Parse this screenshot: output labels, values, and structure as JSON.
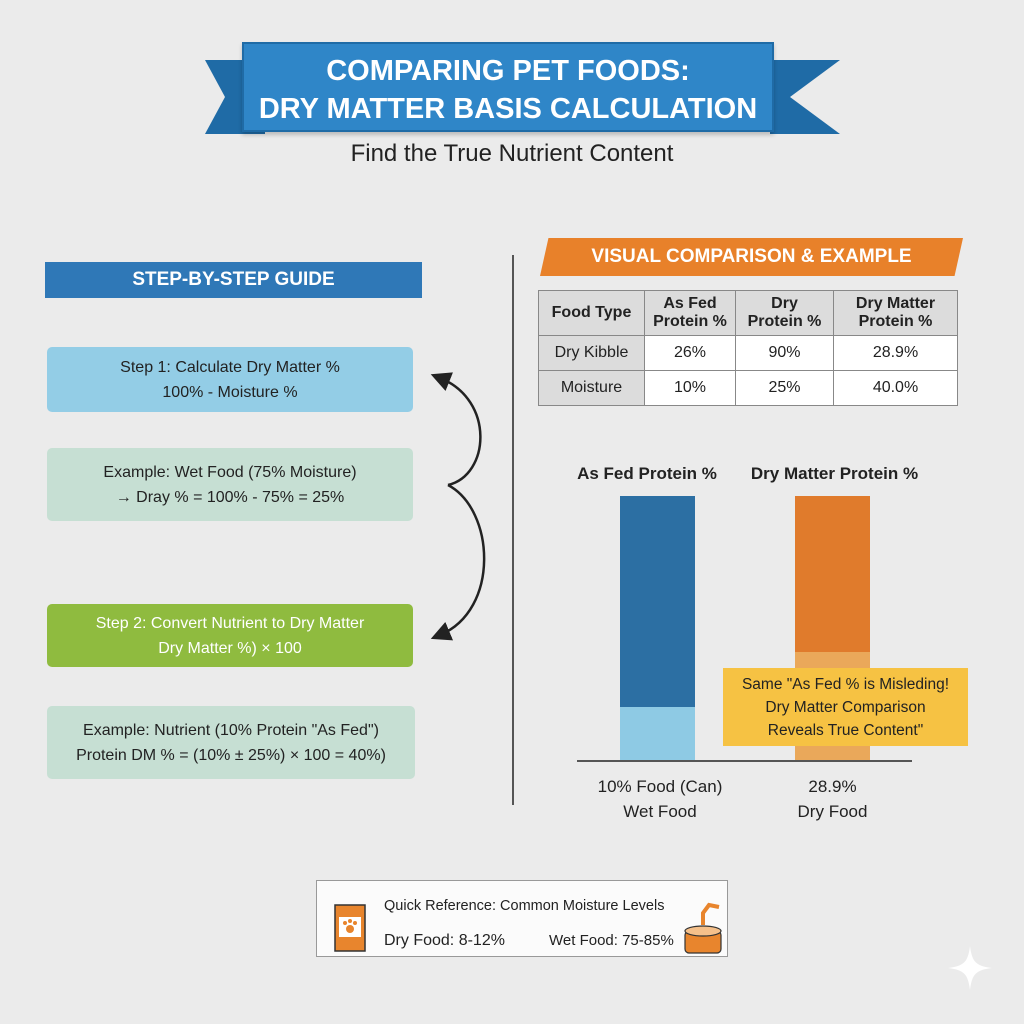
{
  "header": {
    "title_line1": "COMPARING PET FOODS:",
    "title_line2": "DRY MATTER BASIS CALCULATION",
    "subtitle": "Find the True Nutrient Content"
  },
  "guide": {
    "heading": "STEP-BY-STEP GUIDE",
    "steps": [
      {
        "line1": "Step 1: Calculate Dry Matter %",
        "line2": "100% - Moisture %",
        "color": "#93cde6"
      },
      {
        "line1": "Example: Wet Food (75% Moisture)",
        "line2": "→ Dray % = 100% - 75% = 25%",
        "color": "#c6dfd3"
      },
      {
        "line1": "Step 2: Convert Nutrient to Dry Matter",
        "line2": "Dry Matter %) × 100",
        "color": "#8fbb3f"
      },
      {
        "line1": "Example: Nutrient  (10% Protein \"As Fed\")",
        "line2": "Protein DM % = (10% ± 25%) × 100 = 40%)",
        "color": "#c6dfd3"
      }
    ]
  },
  "comparison": {
    "heading": "VISUAL COMPARISON & EXAMPLE",
    "table": {
      "headers": [
        [
          "Food Type",
          ""
        ],
        [
          "As Fed",
          "Protein %"
        ],
        [
          "Dry",
          "Protein %"
        ],
        [
          "Dry Matter",
          "Protein %"
        ]
      ],
      "rows": [
        [
          "Dry Kibble",
          "26%",
          "90%",
          "28.9%"
        ],
        [
          "Moisture",
          "10%",
          "25%",
          "40.0%"
        ]
      ]
    }
  },
  "chart_data": {
    "type": "bar",
    "categories": [
      "As Fed Protein %",
      "Dry Matter Protein %"
    ],
    "bar_labels": [
      [
        "10% Food (Can)",
        "Wet Food"
      ],
      [
        "28.9%",
        "Dry Food"
      ]
    ],
    "lower_segment_fraction": [
      0.2,
      0.41
    ],
    "colors": {
      "blue": "#2c6fa3",
      "light_blue": "#8ecae4",
      "orange": "#e07b2c",
      "light_orange": "#eaa85a"
    },
    "callout": [
      "Same \"As Fed % is Misleding!",
      "Dry Matter Comparison",
      "Reveals True Content\""
    ]
  },
  "reference": {
    "title": "Quick Reference: Common Moisture Levels",
    "dry": "Dry Food: 8-12%",
    "wet": "Wet Food: 75-85%"
  },
  "colors": {
    "banner": "#2f86c8",
    "guide_header": "#2f78b7",
    "comparison_header": "#e8812a",
    "callout": "#f6c243"
  }
}
